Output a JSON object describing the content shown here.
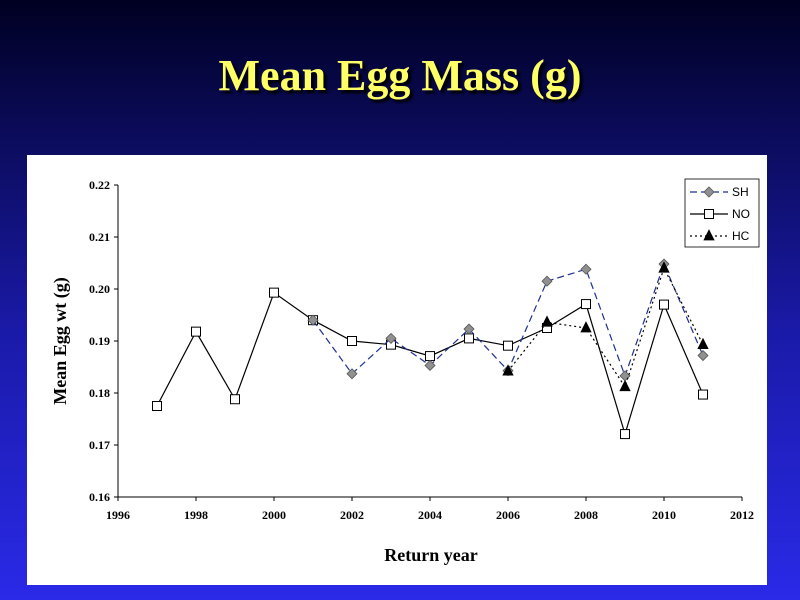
{
  "slide": {
    "title": "Mean Egg Mass (g)"
  },
  "chart_data": {
    "type": "line",
    "title": "",
    "xlabel": "Return year",
    "ylabel": "Mean Egg wt (g)",
    "xlim": [
      1996,
      2012
    ],
    "ylim": [
      0.16,
      0.22
    ],
    "x_ticks": [
      1996,
      1998,
      2000,
      2002,
      2004,
      2006,
      2008,
      2010,
      2012
    ],
    "y_ticks": [
      "0.16",
      "0.17",
      "0.18",
      "0.19",
      "0.20",
      "0.21",
      "0.22"
    ],
    "grid": false,
    "legend_position": "top-right",
    "series": [
      {
        "name": "SH",
        "marker": "diamond",
        "line": "dashed",
        "color": "#1f2f8f",
        "marker_color": "#909090",
        "x": [
          2001,
          2002,
          2003,
          2004,
          2005,
          2006,
          2007,
          2008,
          2009,
          2010,
          2011
        ],
        "values": [
          0.194,
          0.1837,
          0.1905,
          0.1853,
          0.1923,
          0.1843,
          0.2015,
          0.2038,
          0.1833,
          0.2048,
          0.1872
        ]
      },
      {
        "name": "NO",
        "marker": "square",
        "line": "solid",
        "color": "#000000",
        "marker_color": "#ffffff",
        "x": [
          1997,
          1998,
          1999,
          2000,
          2001,
          2002,
          2003,
          2004,
          2005,
          2006,
          2007,
          2008,
          2009,
          2010,
          2011
        ],
        "values": [
          0.1775,
          0.1918,
          0.1788,
          0.1993,
          0.194,
          0.19,
          0.1893,
          0.1871,
          0.1905,
          0.1891,
          0.1925,
          0.1971,
          0.1721,
          0.197,
          0.1797
        ]
      },
      {
        "name": "HC",
        "marker": "triangle",
        "line": "dotted",
        "color": "#000000",
        "marker_color": "#000000",
        "x": [
          2006,
          2007,
          2008,
          2009,
          2010,
          2011
        ],
        "values": [
          0.1842,
          0.1936,
          0.1925,
          0.1812,
          0.204,
          0.1893
        ]
      }
    ]
  }
}
